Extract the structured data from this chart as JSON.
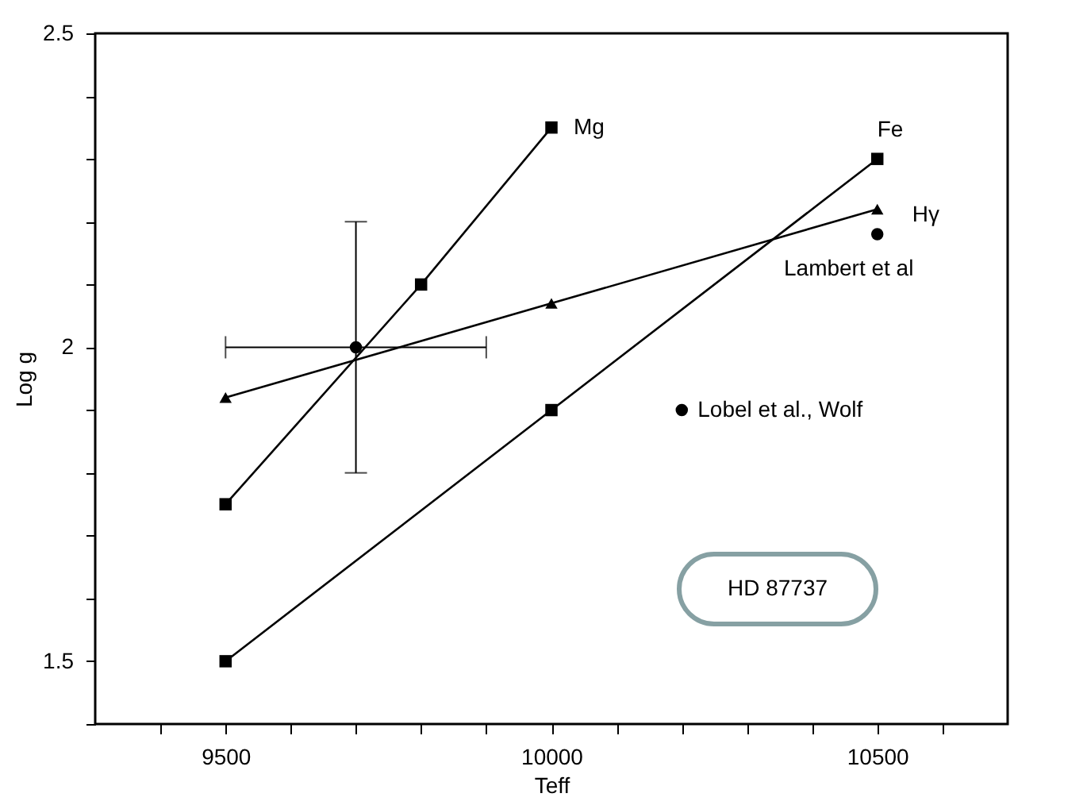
{
  "chart_data": {
    "type": "line",
    "xlabel": "Teff",
    "ylabel": "Log g",
    "xlim": [
      9300,
      10700
    ],
    "ylim": [
      1.4,
      2.5
    ],
    "xticks": [
      {
        "value": 9400,
        "label": null
      },
      9500,
      {
        "value": 9600,
        "label": null
      },
      {
        "value": 9700,
        "label": null
      },
      {
        "value": 9800,
        "label": null
      },
      {
        "value": 9900,
        "label": null
      },
      10000,
      {
        "value": 10100,
        "label": null
      },
      {
        "value": 10200,
        "label": null
      },
      {
        "value": 10300,
        "label": null
      },
      {
        "value": 10400,
        "label": null
      },
      10500,
      {
        "value": 10600,
        "label": null
      }
    ],
    "yticks": [
      {
        "value": 1.4,
        "label": null
      },
      1.5,
      {
        "value": 1.6,
        "label": null
      },
      {
        "value": 1.7,
        "label": null
      },
      {
        "value": 1.8,
        "label": null
      },
      {
        "value": 1.9,
        "label": null
      },
      2,
      {
        "value": 2.1,
        "label": null
      },
      {
        "value": 2.2,
        "label": null
      },
      {
        "value": 2.3,
        "label": null
      },
      {
        "value": 2.4,
        "label": null
      },
      2.5
    ],
    "grid": false,
    "series": [
      {
        "name": "Mg",
        "color": "#000000",
        "marker": "square",
        "x": [
          9500,
          9800,
          10000
        ],
        "values": [
          1.75,
          2.1,
          2.35
        ]
      },
      {
        "name": "Fe",
        "color": "#000000",
        "marker": "square",
        "x": [
          9500,
          10000,
          10500
        ],
        "values": [
          1.5,
          1.9,
          2.3
        ]
      },
      {
        "name": "Hγ",
        "color": "#000000",
        "marker": "triangle",
        "x": [
          9500,
          10000,
          10500
        ],
        "values": [
          1.92,
          2.07,
          2.22
        ]
      },
      {
        "type": "scatter",
        "color": "#000000",
        "marker": "circle",
        "x": [
          9700
        ],
        "values": [
          2.0
        ],
        "errors": [
          0.2
        ],
        "xerrors": [
          200
        ]
      },
      {
        "type": "scatter",
        "name": "Lambert et al",
        "color": "#000000",
        "marker": "circle",
        "x": [
          10500
        ],
        "values": [
          2.18
        ]
      },
      {
        "type": "scatter",
        "name": "Lobel et al., Wolf",
        "color": "#000000",
        "marker": "circle",
        "x": [
          10200
        ],
        "values": [
          1.9
        ]
      }
    ],
    "annotations": [
      "HD 87737"
    ]
  }
}
